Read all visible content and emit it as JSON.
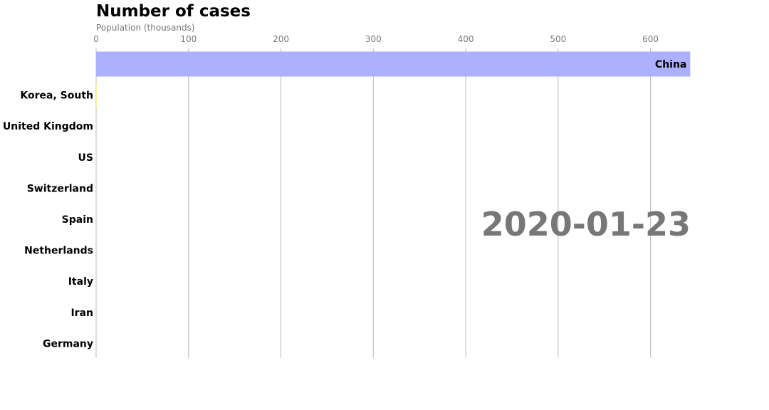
{
  "chart_data": {
    "type": "bar",
    "orientation": "horizontal",
    "title": "Number of cases",
    "xlabel": "Population (thousands)",
    "date": "2020-01-23",
    "xlim": [
      0,
      645
    ],
    "xticks": [
      0,
      100,
      200,
      300,
      400,
      500,
      600
    ],
    "grid": true,
    "categories": [
      "China",
      "Korea, South",
      "United Kingdom",
      "US",
      "Switzerland",
      "Spain",
      "Netherlands",
      "Italy",
      "Iran",
      "Germany"
    ],
    "values": [
      643,
      1,
      0,
      0,
      0,
      0,
      0,
      0,
      0,
      0
    ],
    "colors": [
      "#adafff",
      "#f5f59a",
      "#adafff",
      "#adafff",
      "#adafff",
      "#adafff",
      "#adafff",
      "#adafff",
      "#adafff",
      "#adafff"
    ],
    "text_colors": {
      "date": "#777777",
      "ticks": "#777777",
      "grid": "#bbbbbb"
    }
  }
}
